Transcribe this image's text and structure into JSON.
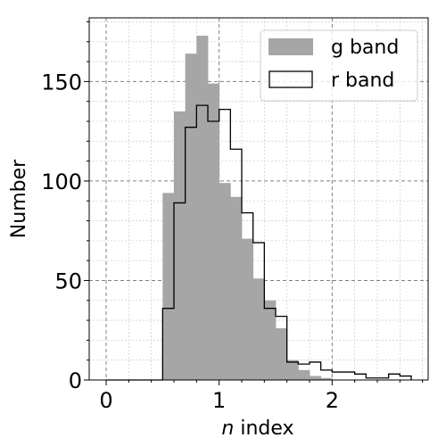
{
  "chart_data": {
    "type": "histogram",
    "xlabel_italic": "n",
    "xlabel_rest": " index",
    "ylabel": "Number",
    "xlim": [
      -0.15,
      2.85
    ],
    "ylim": [
      0,
      182
    ],
    "xticks": [
      0,
      1,
      2
    ],
    "xtick_labels": [
      "0",
      "1",
      "2"
    ],
    "yticks": [
      0,
      50,
      100,
      150
    ],
    "ytick_labels": [
      "0",
      "50",
      "100",
      "150"
    ],
    "x_minor_step": 0.2,
    "y_minor_step": 10,
    "grid": true,
    "legend_position": "top-right",
    "bin_edges": [
      0.0,
      0.1,
      0.2,
      0.3,
      0.4,
      0.5,
      0.6,
      0.7,
      0.8,
      0.9,
      1.0,
      1.1,
      1.2,
      1.3,
      1.4,
      1.5,
      1.6,
      1.7,
      1.8,
      1.9,
      2.0,
      2.1,
      2.2,
      2.3,
      2.4,
      2.5,
      2.6,
      2.7
    ],
    "series": [
      {
        "name": "g band",
        "style": "filled",
        "color": "#a6a6a6",
        "counts": [
          0,
          0,
          0,
          0,
          0,
          94,
          135,
          164,
          173,
          149,
          99,
          92,
          71,
          51,
          40,
          26,
          10,
          5,
          2,
          1,
          0,
          0,
          0,
          0,
          0,
          0,
          0
        ]
      },
      {
        "name": "r band",
        "style": "step",
        "color": "#000000",
        "counts": [
          0,
          0,
          0,
          0,
          0,
          36,
          89,
          127,
          138,
          130,
          136,
          116,
          84,
          69,
          36,
          32,
          9,
          8,
          9,
          5,
          4,
          4,
          3,
          1,
          1,
          3,
          2
        ]
      }
    ]
  }
}
